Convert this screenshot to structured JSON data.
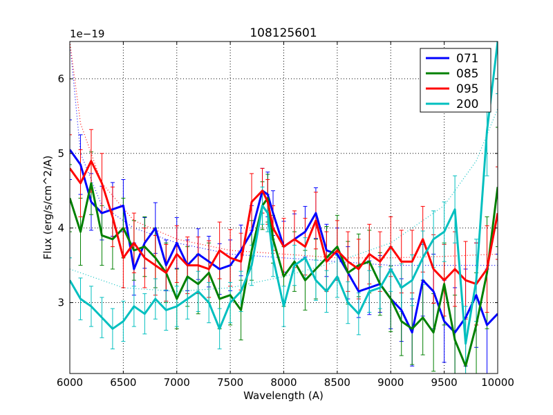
{
  "chart_data": {
    "type": "line",
    "title": "108125601",
    "xlabel": "Wavelength (A)",
    "ylabel": "Flux (erg/s/cm^2/A)",
    "y_multiplier": "1e−19",
    "xlim": [
      6000,
      10000
    ],
    "ylim": [
      2.05,
      6.5
    ],
    "xticks": [
      6000,
      6500,
      7000,
      7500,
      8000,
      8500,
      9000,
      9500,
      10000
    ],
    "yticks": [
      3,
      4,
      5,
      6
    ],
    "grid": true,
    "legend_position": "top-right",
    "x": [
      6000,
      6100,
      6200,
      6300,
      6400,
      6500,
      6600,
      6700,
      6800,
      6900,
      7000,
      7100,
      7200,
      7300,
      7400,
      7500,
      7600,
      7700,
      7800,
      7850,
      7900,
      8000,
      8100,
      8200,
      8300,
      8400,
      8500,
      8600,
      8700,
      8800,
      8900,
      9000,
      9100,
      9200,
      9300,
      9400,
      9500,
      9600,
      9700,
      9800,
      9900,
      10000
    ],
    "series": [
      {
        "name": "071",
        "color": "#0000ff",
        "values": [
          5.05,
          4.85,
          4.35,
          4.2,
          4.25,
          4.3,
          3.45,
          3.8,
          4.0,
          3.5,
          3.8,
          3.5,
          3.65,
          3.55,
          3.45,
          3.5,
          3.7,
          3.95,
          4.5,
          4.45,
          4.2,
          3.75,
          3.85,
          3.95,
          4.2,
          3.7,
          3.65,
          3.4,
          3.15,
          3.2,
          3.25,
          3.05,
          2.9,
          2.6,
          3.3,
          3.15,
          2.75,
          2.6,
          2.8,
          3.1,
          2.7,
          2.85
        ],
        "errors": [
          0.4,
          0.4,
          0.38,
          0.36,
          0.36,
          0.35,
          0.35,
          0.34,
          0.34,
          0.34,
          0.34,
          0.34,
          0.34,
          0.34,
          0.34,
          0.34,
          0.34,
          0.35,
          0.3,
          0.3,
          0.3,
          0.34,
          0.34,
          0.34,
          0.34,
          0.35,
          0.35,
          0.35,
          0.35,
          0.36,
          0.38,
          0.4,
          0.42,
          0.45,
          0.48,
          0.5,
          0.55,
          0.6,
          0.65,
          0.7,
          0.75,
          0.8
        ]
      },
      {
        "name": "085",
        "color": "#008000",
        "values": [
          4.4,
          3.95,
          4.6,
          3.9,
          3.85,
          4.0,
          3.7,
          3.75,
          3.6,
          3.4,
          3.05,
          3.35,
          3.25,
          3.4,
          3.05,
          3.1,
          2.9,
          3.7,
          4.3,
          4.4,
          3.85,
          3.35,
          3.55,
          3.3,
          3.45,
          3.6,
          3.75,
          3.4,
          3.5,
          3.55,
          3.25,
          3.05,
          2.75,
          2.65,
          2.8,
          2.6,
          3.25,
          2.5,
          2.15,
          2.7,
          3.4,
          4.55
        ],
        "errors": [
          0.45,
          0.45,
          0.42,
          0.4,
          0.4,
          0.4,
          0.4,
          0.4,
          0.4,
          0.4,
          0.4,
          0.4,
          0.4,
          0.4,
          0.4,
          0.4,
          0.4,
          0.4,
          0.32,
          0.32,
          0.32,
          0.4,
          0.4,
          0.4,
          0.4,
          0.42,
          0.42,
          0.42,
          0.42,
          0.42,
          0.42,
          0.44,
          0.46,
          0.48,
          0.5,
          0.52,
          0.55,
          0.6,
          0.65,
          0.7,
          0.75,
          0.8
        ]
      },
      {
        "name": "095",
        "color": "#ff0000",
        "values": [
          4.8,
          4.6,
          4.9,
          4.6,
          4.15,
          3.6,
          3.8,
          3.6,
          3.5,
          3.4,
          3.65,
          3.5,
          3.5,
          3.45,
          3.7,
          3.6,
          3.55,
          4.35,
          4.5,
          4.35,
          4.0,
          3.75,
          3.85,
          3.75,
          4.1,
          3.55,
          3.7,
          3.55,
          3.45,
          3.65,
          3.55,
          3.75,
          3.55,
          3.55,
          3.85,
          3.45,
          3.3,
          3.45,
          3.3,
          3.25,
          3.45,
          4.2
        ],
        "errors": [
          0.45,
          0.45,
          0.42,
          0.4,
          0.4,
          0.4,
          0.4,
          0.4,
          0.4,
          0.38,
          0.38,
          0.38,
          0.38,
          0.38,
          0.38,
          0.38,
          0.38,
          0.38,
          0.3,
          0.3,
          0.3,
          0.38,
          0.38,
          0.38,
          0.38,
          0.4,
          0.4,
          0.4,
          0.4,
          0.4,
          0.4,
          0.4,
          0.42,
          0.42,
          0.44,
          0.46,
          0.48,
          0.5,
          0.52,
          0.55,
          0.58,
          0.62
        ]
      },
      {
        "name": "200",
        "color": "#00bfbf",
        "values": [
          3.3,
          3.05,
          2.95,
          2.8,
          2.65,
          2.75,
          2.95,
          2.85,
          3.05,
          2.9,
          2.95,
          3.05,
          3.15,
          3.0,
          2.65,
          3.0,
          3.15,
          3.5,
          4.3,
          4.2,
          3.6,
          2.95,
          3.5,
          3.6,
          3.3,
          3.15,
          3.35,
          3.0,
          2.85,
          3.15,
          3.2,
          3.45,
          3.2,
          3.3,
          3.6,
          3.85,
          3.95,
          4.25,
          2.45,
          3.3,
          5.3,
          6.5
        ],
        "errors": [
          0.3,
          0.28,
          0.27,
          0.27,
          0.27,
          0.27,
          0.27,
          0.27,
          0.27,
          0.27,
          0.27,
          0.27,
          0.27,
          0.27,
          0.27,
          0.27,
          0.27,
          0.27,
          0.25,
          0.25,
          0.25,
          0.27,
          0.27,
          0.27,
          0.27,
          0.28,
          0.28,
          0.28,
          0.28,
          0.28,
          0.28,
          0.3,
          0.32,
          0.34,
          0.36,
          0.38,
          0.4,
          0.45,
          0.5,
          0.55,
          0.6,
          0.7
        ]
      }
    ],
    "fits": [
      {
        "name": "071",
        "color": "#0000ff",
        "x": [
          6000,
          6100,
          6300,
          6600,
          7000,
          7500,
          8000,
          8500,
          9000,
          9500,
          10000
        ],
        "values": [
          6.5,
          5.0,
          4.3,
          4.0,
          3.8,
          3.65,
          3.6,
          3.55,
          3.5,
          3.5,
          3.5
        ]
      },
      {
        "name": "095",
        "color": "#ff0000",
        "x": [
          6000,
          6100,
          6300,
          6600,
          7000,
          7500,
          8000,
          8500,
          9000,
          9500,
          10000
        ],
        "values": [
          6.5,
          5.4,
          4.6,
          4.1,
          3.85,
          3.7,
          3.65,
          3.6,
          3.6,
          3.62,
          3.65
        ]
      },
      {
        "name": "200",
        "color": "#00bfbf",
        "x": [
          6000,
          6500,
          7000,
          7500,
          8000,
          8500,
          9000,
          9500,
          9800,
          10000
        ],
        "values": [
          3.45,
          3.2,
          3.15,
          3.2,
          3.35,
          3.55,
          3.8,
          4.3,
          4.9,
          5.6
        ]
      }
    ]
  }
}
